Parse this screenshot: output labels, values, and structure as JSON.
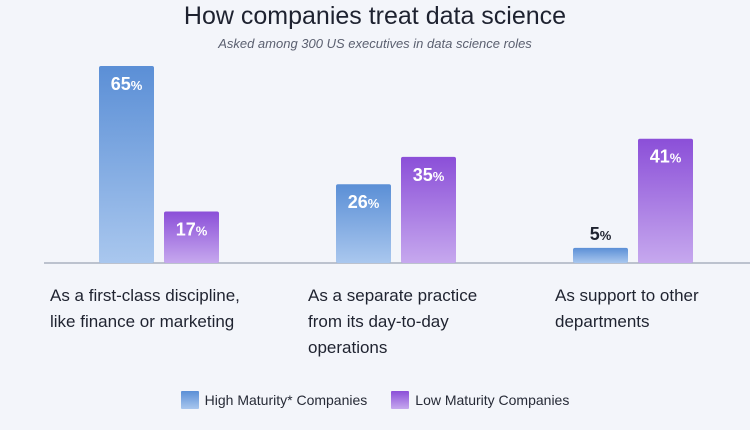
{
  "chart_data": {
    "type": "bar",
    "title": "How companies treat data science",
    "subtitle": "Asked among 300 US executives in data science roles",
    "categories": [
      "As a first-class discipline,\nlike finance or marketing",
      "As a separate practice\nfrom its day-to-day\noperations",
      "As support to other\ndepartments"
    ],
    "series": [
      {
        "name": "High Maturity* Companies",
        "values": [
          65,
          26,
          5
        ],
        "labels": [
          "65%",
          "26%",
          "5%"
        ],
        "color_top": "#5b8fd6",
        "color_bottom": "#a9c7ee"
      },
      {
        "name": "Low Maturity Companies",
        "values": [
          17,
          35,
          41
        ],
        "labels": [
          "17%",
          "35%",
          "41%"
        ],
        "color_top": "#8b4fd8",
        "color_bottom": "#c6a8ee"
      }
    ],
    "ylim": [
      0,
      65
    ],
    "grid": false,
    "legend_position": "bottom-center",
    "baseline_color": "#9aa3b5"
  }
}
